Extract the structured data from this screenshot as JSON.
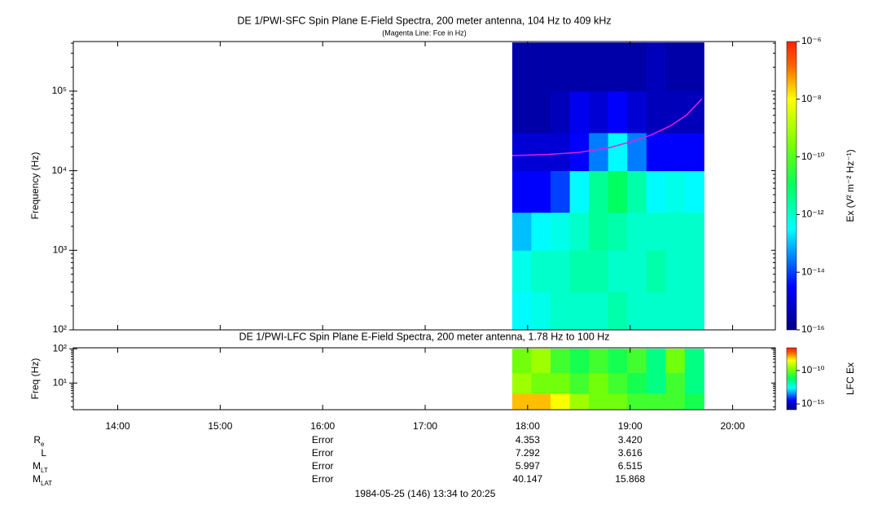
{
  "chart_data": [
    {
      "type": "heatmap",
      "title": "DE 1/PWI-SFC  Spin Plane E-Field Spectra, 200 meter antenna, 104 Hz to 409 kHz",
      "subtitle": "(Magenta Line: Fce in Hz)",
      "y_label": "Frequency (Hz)",
      "colorbar_label": "Ex (V² m⁻² Hz⁻¹)",
      "log_y": true,
      "ylim": [
        100,
        420000
      ],
      "yticks": [
        {
          "value": 100,
          "label": "10²"
        },
        {
          "value": 1000,
          "label": "10³"
        },
        {
          "value": 10000,
          "label": "10⁴"
        },
        {
          "value": 100000,
          "label": "10⁵"
        }
      ],
      "clim": [
        1e-16,
        1e-06
      ],
      "cticks": [
        {
          "value": 1e-06,
          "label": "10⁻⁶"
        },
        {
          "value": 1e-08,
          "label": "10⁻⁸"
        },
        {
          "value": 1e-10,
          "label": "10⁻¹⁰"
        },
        {
          "value": 1e-12,
          "label": "10⁻¹²"
        },
        {
          "value": 1e-14,
          "label": "10⁻¹⁴"
        },
        {
          "value": 1e-16,
          "label": "10⁻¹⁶"
        }
      ],
      "time_edges": [
        17.85,
        18.037,
        18.224,
        18.411,
        18.598,
        18.785,
        18.972,
        19.159,
        19.346,
        19.533,
        19.72
      ],
      "freq_edges": [
        100,
        300,
        1000,
        3000,
        10000,
        30000,
        100000,
        409000
      ],
      "z": [
        [
          3e-13,
          5e-13,
          1e-12,
          1e-12,
          1e-12,
          2e-12,
          1e-12,
          1e-12,
          1e-12,
          1e-12
        ],
        [
          5e-13,
          1e-12,
          1e-12,
          2e-12,
          2e-12,
          1e-12,
          1e-12,
          2e-12,
          1e-12,
          1e-12
        ],
        [
          1e-13,
          3e-13,
          5e-13,
          1e-12,
          3e-12,
          2e-12,
          1e-12,
          1e-12,
          1e-12,
          1e-12
        ],
        [
          3e-15,
          3e-15,
          1e-14,
          3e-13,
          3e-12,
          1e-11,
          2e-12,
          3e-13,
          5e-13,
          3e-13
        ],
        [
          1e-15,
          1e-15,
          1e-15,
          3e-15,
          3e-14,
          3e-13,
          3e-14,
          3e-15,
          3e-15,
          3e-15
        ],
        [
          3e-16,
          3e-16,
          5e-16,
          2e-15,
          1e-15,
          3e-15,
          1e-15,
          5e-16,
          5e-16,
          5e-16
        ],
        [
          3e-16,
          3e-16,
          3e-16,
          3e-16,
          3e-16,
          3e-16,
          3e-16,
          5e-16,
          3e-16,
          3e-16
        ]
      ],
      "series": [
        {
          "name": "Fce",
          "color": "#e020e0",
          "x": [
            17.85,
            18.2,
            18.5,
            18.8,
            19.0,
            19.2,
            19.4,
            19.55,
            19.7
          ],
          "values": [
            15500,
            16000,
            17000,
            19500,
            23000,
            28000,
            37000,
            50000,
            80000
          ]
        }
      ]
    },
    {
      "type": "heatmap",
      "title": "DE 1/PWI-LFC  Spin Plane E-Field Spectra, 200 meter antenna, 1.78 Hz to 100 Hz",
      "y_label": "Freq (Hz)",
      "colorbar_label": "LFC Ex",
      "log_y": true,
      "ylim": [
        1.66,
        107
      ],
      "yticks": [
        {
          "value": 10,
          "label": "10¹"
        },
        {
          "value": 100,
          "label": "10²"
        }
      ],
      "clim": [
        1.4e-16,
        2.5e-07
      ],
      "cticks": [
        {
          "value": 1e-10,
          "label": "10⁻¹⁰"
        },
        {
          "value": 1e-15,
          "label": "10⁻¹⁵"
        }
      ],
      "time_edges": [
        17.85,
        18.037,
        18.224,
        18.411,
        18.598,
        18.785,
        18.972,
        19.159,
        19.346,
        19.533,
        19.72
      ],
      "freq_edges": [
        1.78,
        5,
        20,
        100
      ],
      "z": [
        [
          1e-08,
          1e-08,
          3e-09,
          3e-10,
          1e-10,
          1e-10,
          3e-11,
          3e-11,
          3e-11,
          1e-11
        ],
        [
          3e-10,
          1e-10,
          1e-10,
          3e-11,
          1e-10,
          3e-11,
          1e-11,
          3e-12,
          3e-11,
          3e-12
        ],
        [
          1e-10,
          3e-10,
          3e-11,
          1e-11,
          3e-11,
          1e-11,
          3e-11,
          3e-12,
          1e-10,
          3e-12
        ]
      ]
    }
  ],
  "time_axis": {
    "xlim": [
      13.5667,
      20.4167
    ],
    "xticks": [
      {
        "value": 14,
        "label": "14:00"
      },
      {
        "value": 15,
        "label": "15:00"
      },
      {
        "value": 16,
        "label": "16:00"
      },
      {
        "value": 17,
        "label": "17:00"
      },
      {
        "value": 18,
        "label": "18:00"
      },
      {
        "value": 19,
        "label": "19:00"
      },
      {
        "value": 20,
        "label": "20:00"
      }
    ]
  },
  "ephemeris": [
    {
      "label": "R",
      "sub": "e",
      "values": [
        null,
        null,
        "Error",
        null,
        "4.353",
        "3.420",
        null
      ]
    },
    {
      "label": "L",
      "sub": null,
      "values": [
        null,
        null,
        "Error",
        null,
        "7.292",
        "3.616",
        null
      ]
    },
    {
      "label": "M",
      "sub": "LT",
      "values": [
        null,
        null,
        "Error",
        null,
        "5.997",
        "6.515",
        null
      ]
    },
    {
      "label": "M",
      "sub": "LAT",
      "values": [
        null,
        null,
        "Error",
        null,
        "40.147",
        "15.868",
        null
      ]
    }
  ],
  "footer": "1984-05-25 (146) 13:34 to 20:25"
}
